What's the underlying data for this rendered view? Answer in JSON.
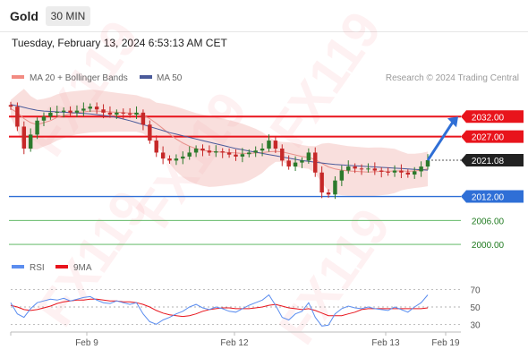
{
  "header": {
    "instrument": "Gold",
    "timeframe": "30 MIN",
    "timestamp": "Tuesday, February 13, 2024 6:53:13 AM CET"
  },
  "legend": {
    "bollinger_label": "MA 20 + Bollinger Bands",
    "ma50_label": "MA 50",
    "credit": "Research © 2024 Trading Central",
    "rsi_label": "RSI",
    "rsi_ma_label": "9MA"
  },
  "watermark": "FX119",
  "colors": {
    "resistance": "#e8141c",
    "support_pivot": "#2f6fd6",
    "current_price": "#222222",
    "support_line": "#4caf50",
    "candle_up": "#2c7a2c",
    "candle_down": "#c62828",
    "bollinger": "#f2b8b4",
    "ma50": "#4a5a9a",
    "rsi": "#5b8def",
    "rsi_ma": "#e8141c",
    "arrow": "#2f6fd6"
  },
  "chart_data": {
    "type": "candlestick",
    "instrument": "Gold",
    "timeframe": "30 MIN",
    "price_range": [
      1998.0,
      2037.0
    ],
    "levels": [
      {
        "label": "2032.00",
        "value": 2032.0,
        "kind": "resistance"
      },
      {
        "label": "2027.00",
        "value": 2027.0,
        "kind": "resistance"
      },
      {
        "label": "2021.08",
        "value": 2021.08,
        "kind": "current"
      },
      {
        "label": "2012.00",
        "value": 2012.0,
        "kind": "pivot"
      },
      {
        "label": "2006.00",
        "value": 2006.0,
        "kind": "support"
      },
      {
        "label": "2000.00",
        "value": 2000.0,
        "kind": "support"
      }
    ],
    "x_labels": [
      "Feb 9",
      "Feb 12",
      "Feb 13",
      "Feb 19"
    ],
    "closes": [
      2034.5,
      2029.5,
      2024.0,
      2027.5,
      2031.0,
      2032.0,
      2033.0,
      2033.2,
      2033.5,
      2033.0,
      2033.5,
      2034.0,
      2034.5,
      2033.8,
      2033.0,
      2032.5,
      2033.0,
      2032.8,
      2032.5,
      2033.0,
      2030.0,
      2026.0,
      2023.0,
      2021.5,
      2021.0,
      2021.5,
      2022.0,
      2023.0,
      2024.0,
      2023.5,
      2023.0,
      2023.3,
      2023.0,
      2022.5,
      2022.0,
      2022.6,
      2023.0,
      2023.5,
      2024.0,
      2026.0,
      2024.0,
      2021.0,
      2019.5,
      2020.5,
      2021.0,
      2023.0,
      2018.0,
      2013.0,
      2012.5,
      2016.0,
      2018.5,
      2019.5,
      2019.0,
      2018.8,
      2019.0,
      2018.5,
      2018.2,
      2018.0,
      2018.5,
      2018.0,
      2017.5,
      2018.3,
      2019.5,
      2021.08
    ],
    "ma20": [
      2034.0,
      2033.0,
      2031.5,
      2030.5,
      2030.0,
      2030.5,
      2031.0,
      2031.8,
      2032.3,
      2032.7,
      2033.0,
      2033.2,
      2033.4,
      2033.4,
      2033.3,
      2033.2,
      2033.1,
      2033.0,
      2032.9,
      2032.8,
      2032.3,
      2031.5,
      2030.3,
      2029.0,
      2027.6,
      2026.4,
      2025.4,
      2024.6,
      2024.0,
      2023.6,
      2023.3,
      2023.2,
      2023.1,
      2023.0,
      2022.9,
      2022.8,
      2022.8,
      2022.9,
      2023.0,
      2023.2,
      2023.3,
      2023.2,
      2022.8,
      2022.4,
      2022.0,
      2021.8,
      2021.2,
      2020.3,
      2019.4,
      2018.9,
      2018.6,
      2018.4,
      2018.3,
      2018.2,
      2018.1,
      2018.2,
      2018.3,
      2018.3,
      2018.4,
      2018.4,
      2018.3,
      2018.4,
      2018.6,
      2018.9
    ],
    "ma50": [
      2035.0,
      2034.7,
      2034.3,
      2033.9,
      2033.6,
      2033.4,
      2033.3,
      2033.2,
      2033.1,
      2033.0,
      2032.9,
      2032.8,
      2032.7,
      2032.5,
      2032.3,
      2032.1,
      2031.8,
      2031.4,
      2031.0,
      2030.5,
      2030.0,
      2029.5,
      2029.0,
      2028.5,
      2028.0,
      2027.6,
      2027.2,
      2026.8,
      2026.4,
      2026.0,
      2025.6,
      2025.2,
      2024.8,
      2024.4,
      2024.0,
      2023.7,
      2023.4,
      2023.1,
      2022.8,
      2022.5,
      2022.2,
      2021.9,
      2021.6,
      2021.3,
      2021.0,
      2020.8,
      2020.6,
      2020.4,
      2020.2,
      2020.0,
      2019.9,
      2019.8,
      2019.7,
      2019.6,
      2019.5,
      2019.4,
      2019.3,
      2019.2,
      2019.1,
      2019.0,
      2018.9,
      2018.8,
      2018.7,
      2018.6
    ],
    "projection": {
      "from": 2021.08,
      "to": 2032.0
    },
    "rsi": {
      "levels": [
        70,
        50,
        30
      ],
      "range": [
        20,
        80
      ],
      "values": [
        55,
        42,
        38,
        48,
        55,
        57,
        59,
        58,
        60,
        57,
        59,
        61,
        62,
        58,
        55,
        54,
        57,
        55,
        53,
        55,
        42,
        33,
        30,
        35,
        38,
        42,
        45,
        50,
        53,
        49,
        47,
        50,
        48,
        45,
        44,
        48,
        52,
        55,
        58,
        64,
        52,
        38,
        35,
        42,
        45,
        55,
        38,
        28,
        29,
        42,
        48,
        51,
        49,
        48,
        50,
        48,
        47,
        46,
        50,
        47,
        44,
        50,
        55,
        64
      ],
      "ma9": [
        52,
        50,
        47,
        46,
        47,
        49,
        51,
        54,
        56,
        57,
        58,
        58,
        59,
        59,
        58,
        57,
        57,
        56,
        56,
        55,
        53,
        50,
        46,
        43,
        41,
        40,
        39,
        40,
        42,
        45,
        47,
        48,
        49,
        49,
        48,
        48,
        48,
        49,
        50,
        52,
        53,
        51,
        49,
        48,
        47,
        48,
        46,
        43,
        40,
        40,
        40,
        42,
        44,
        47,
        48,
        48,
        48,
        48,
        48,
        48,
        48,
        48,
        48,
        49
      ]
    }
  }
}
